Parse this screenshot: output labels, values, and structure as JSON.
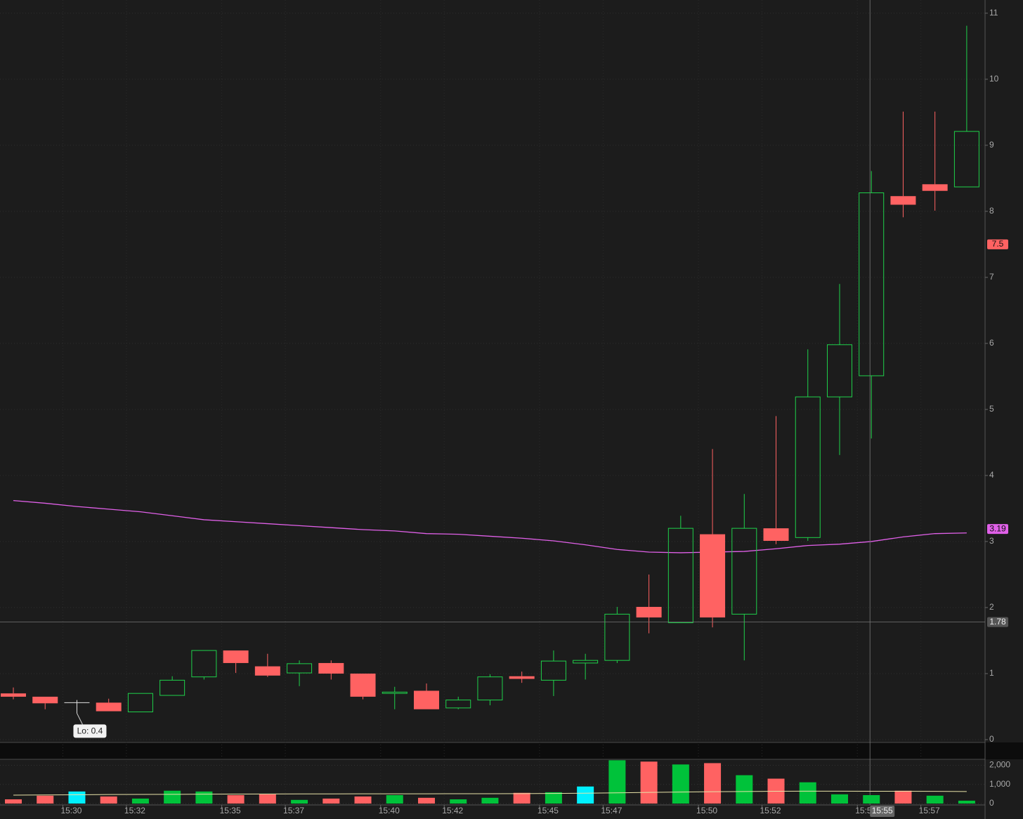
{
  "chart_data": {
    "type": "candlestick",
    "categories": [
      null,
      null,
      "15:30",
      null,
      "15:32",
      null,
      null,
      "15:35",
      null,
      "15:37",
      null,
      null,
      "15:40",
      null,
      "15:42",
      null,
      null,
      "15:45",
      null,
      "15:47",
      null,
      null,
      "15:50",
      null,
      "15:52",
      null,
      null,
      "15:55",
      null,
      "15:57",
      null
    ],
    "open": [
      0.7,
      0.65,
      0.56,
      0.56,
      0.42,
      0.67,
      0.95,
      1.35,
      1.11,
      1.01,
      1.16,
      1.0,
      0.7,
      0.74,
      0.48,
      0.6,
      0.96,
      0.9,
      1.16,
      1.2,
      2.01,
      1.77,
      3.11,
      1.9,
      3.2,
      3.06,
      5.19,
      5.51,
      8.23,
      8.41,
      8.37
    ],
    "high": [
      0.79,
      0.65,
      0.6,
      0.62,
      0.7,
      0.96,
      1.35,
      1.35,
      1.3,
      1.2,
      1.2,
      1.0,
      0.8,
      0.85,
      0.65,
      0.99,
      1.03,
      1.35,
      1.3,
      2.01,
      2.5,
      3.39,
      4.4,
      3.72,
      4.9,
      5.91,
      6.9,
      8.61,
      9.51,
      9.51,
      10.81
    ],
    "low": [
      0.61,
      0.46,
      0.4,
      0.43,
      0.42,
      0.67,
      0.91,
      1.01,
      0.95,
      0.81,
      0.91,
      0.61,
      0.46,
      0.46,
      0.46,
      0.52,
      0.86,
      0.66,
      0.91,
      1.16,
      1.61,
      1.77,
      1.7,
      1.2,
      2.96,
      3.01,
      4.31,
      4.56,
      7.91,
      8.01,
      8.37
    ],
    "close": [
      0.65,
      0.55,
      0.56,
      0.43,
      0.7,
      0.9,
      1.35,
      1.16,
      0.97,
      1.15,
      1.0,
      0.65,
      0.72,
      0.46,
      0.6,
      0.95,
      0.92,
      1.19,
      1.2,
      1.9,
      1.85,
      3.2,
      1.85,
      3.2,
      3.01,
      5.19,
      5.98,
      8.28,
      8.1,
      8.31,
      9.21
    ],
    "up_color": "#1fd14a",
    "down_color": "#ff6262",
    "doji_color": "#e0e0e0",
    "ylim": [
      0,
      11.2
    ],
    "yticks": [
      0,
      1,
      2,
      3,
      4,
      5,
      6,
      7,
      8,
      9,
      10,
      11
    ],
    "grid": true,
    "moving_average": {
      "color": "#e060e8",
      "values": [
        3.62,
        3.58,
        3.53,
        3.49,
        3.45,
        3.39,
        3.33,
        3.3,
        3.27,
        3.24,
        3.21,
        3.18,
        3.16,
        3.12,
        3.11,
        3.08,
        3.05,
        3.01,
        2.95,
        2.88,
        2.84,
        2.83,
        2.84,
        2.85,
        2.89,
        2.94,
        2.96,
        3.0,
        3.07,
        3.12,
        3.13
      ]
    },
    "ma_tag": 3.19,
    "price_tag": 7.5,
    "crosshair": {
      "price": 1.78,
      "time": "15:55"
    },
    "annotations": [
      {
        "text": "Lo: 0.4"
      }
    ],
    "volume": {
      "values": [
        220,
        410,
        630,
        370,
        260,
        670,
        630,
        440,
        480,
        190,
        260,
        370,
        440,
        300,
        220,
        300,
        560,
        590,
        890,
        2260,
        2190,
        2040,
        2110,
        1480,
        1300,
        1110,
        480,
        440,
        670,
        410,
        150
      ],
      "colors": [
        "#ff6262",
        "#ff6262",
        "#00f0ff",
        "#ff6262",
        "#00c23a",
        "#00c23a",
        "#00c23a",
        "#ff6262",
        "#ff6262",
        "#00c23a",
        "#ff6262",
        "#ff6262",
        "#00c23a",
        "#ff6262",
        "#00c23a",
        "#00c23a",
        "#ff6262",
        "#00c23a",
        "#00f0ff",
        "#00c23a",
        "#ff6262",
        "#00c23a",
        "#ff6262",
        "#00c23a",
        "#ff6262",
        "#00c23a",
        "#00c23a",
        "#00c23a",
        "#ff6262",
        "#00c23a",
        "#00c23a"
      ],
      "average": {
        "color": "#e8e2a8",
        "values": [
          440,
          450,
          460,
          470,
          475,
          480,
          490,
          495,
          500,
          505,
          505,
          510,
          510,
          510,
          515,
          515,
          520,
          525,
          540,
          560,
          580,
          600,
          620,
          630,
          640,
          645,
          645,
          640,
          640,
          635,
          630
        ]
      },
      "ylim": [
        0,
        2310
      ],
      "yticks": [
        0,
        {
          "value": 1000,
          "label": "1,000"
        },
        {
          "value": 2000,
          "label": "2,000"
        }
      ]
    }
  }
}
